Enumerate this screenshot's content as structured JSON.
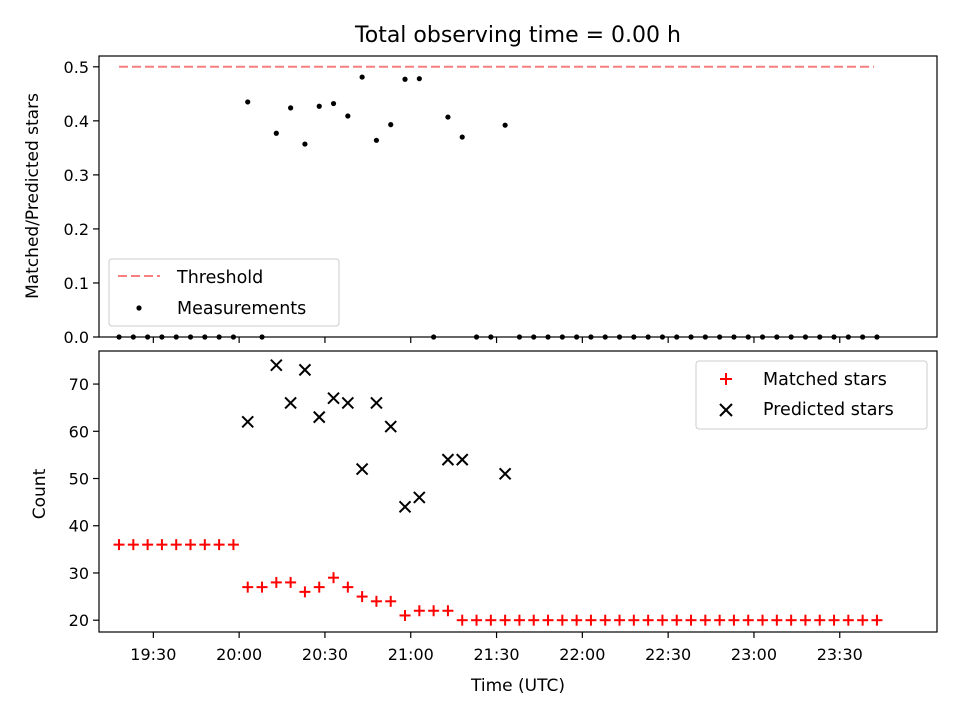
{
  "figure": {
    "title": "Total observing time = 0.00 h",
    "xlabel": "Time (UTC)",
    "xticks": [
      "19:30",
      "20:00",
      "20:30",
      "21:00",
      "21:30",
      "22:00",
      "22:30",
      "23:00",
      "23:30"
    ]
  },
  "chart_data": [
    {
      "type": "scatter",
      "ylabel": "Matched/Predicted stars",
      "yticks": [
        "0.0",
        "0.1",
        "0.2",
        "0.3",
        "0.4",
        "0.5"
      ],
      "ylim": [
        0,
        0.52
      ],
      "xlim": [
        "19:11",
        "24:04"
      ],
      "legend": {
        "placement": "lower-left",
        "entries": [
          "Threshold",
          "Measurements"
        ]
      },
      "threshold": {
        "name": "Threshold",
        "value": 0.5,
        "color": "#f77f7f",
        "style": "dashed",
        "x_range": [
          "19:18",
          "23:42"
        ]
      },
      "series": [
        {
          "name": "Measurements",
          "color": "#000000",
          "marker": "dot",
          "x": [
            "19:18",
            "19:23",
            "19:28",
            "19:33",
            "19:38",
            "19:43",
            "19:48",
            "19:53",
            "19:58",
            "20:03",
            "20:08",
            "20:13",
            "20:18",
            "20:23",
            "20:28",
            "20:33",
            "20:38",
            "20:43",
            "20:48",
            "20:53",
            "20:58",
            "21:03",
            "21:08",
            "21:13",
            "21:18",
            "21:23",
            "21:28",
            "21:33",
            "21:38",
            "21:43",
            "21:48",
            "21:53",
            "21:58",
            "22:03",
            "22:08",
            "22:13",
            "22:18",
            "22:23",
            "22:28",
            "22:33",
            "22:38",
            "22:43",
            "22:48",
            "22:53",
            "22:58",
            "23:03",
            "23:08",
            "23:13",
            "23:18",
            "23:23",
            "23:28",
            "23:33",
            "23:38",
            "23:43"
          ],
          "y": [
            0,
            0,
            0,
            0,
            0,
            0,
            0,
            0,
            0,
            0.435,
            0,
            0.377,
            0.424,
            0.357,
            0.427,
            0.432,
            0.409,
            0.481,
            0.364,
            0.393,
            0.477,
            0.478,
            0,
            0.407,
            0.37,
            0,
            0,
            0.392,
            0,
            0,
            0,
            0,
            0,
            0,
            0,
            0,
            0,
            0,
            0,
            0,
            0,
            0,
            0,
            0,
            0,
            0,
            0,
            0,
            0,
            0,
            0,
            0,
            0,
            0
          ]
        }
      ]
    },
    {
      "type": "scatter",
      "ylabel": "Count",
      "yticks": [
        "20",
        "30",
        "40",
        "50",
        "60",
        "70"
      ],
      "ylim": [
        17.5,
        77
      ],
      "xlim": [
        "19:11",
        "24:04"
      ],
      "legend": {
        "placement": "top-right",
        "entries": [
          "Matched stars",
          "Predicted stars"
        ]
      },
      "series": [
        {
          "name": "Matched stars",
          "color": "#ff0000",
          "marker": "plus",
          "x": [
            "19:18",
            "19:23",
            "19:28",
            "19:33",
            "19:38",
            "19:43",
            "19:48",
            "19:53",
            "19:58",
            "20:03",
            "20:08",
            "20:13",
            "20:18",
            "20:23",
            "20:28",
            "20:33",
            "20:38",
            "20:43",
            "20:48",
            "20:53",
            "20:58",
            "21:03",
            "21:08",
            "21:13",
            "21:18",
            "21:23",
            "21:28",
            "21:33",
            "21:38",
            "21:43",
            "21:48",
            "21:53",
            "21:58",
            "22:03",
            "22:08",
            "22:13",
            "22:18",
            "22:23",
            "22:28",
            "22:33",
            "22:38",
            "22:43",
            "22:48",
            "22:53",
            "22:58",
            "23:03",
            "23:08",
            "23:13",
            "23:18",
            "23:23",
            "23:28",
            "23:33",
            "23:38",
            "23:43"
          ],
          "y": [
            36,
            36,
            36,
            36,
            36,
            36,
            36,
            36,
            36,
            27,
            27,
            28,
            28,
            26,
            27,
            29,
            27,
            25,
            24,
            24,
            21,
            22,
            22,
            22,
            20,
            20,
            20,
            20,
            20,
            20,
            20,
            20,
            20,
            20,
            20,
            20,
            20,
            20,
            20,
            20,
            20,
            20,
            20,
            20,
            20,
            20,
            20,
            20,
            20,
            20,
            20,
            20,
            20,
            20
          ]
        },
        {
          "name": "Predicted stars",
          "color": "#000000",
          "marker": "x",
          "x": [
            "20:03",
            "20:13",
            "20:18",
            "20:23",
            "20:28",
            "20:33",
            "20:38",
            "20:43",
            "20:48",
            "20:53",
            "20:58",
            "21:03",
            "21:13",
            "21:18",
            "21:33"
          ],
          "y": [
            62,
            74,
            66,
            73,
            63,
            67,
            66,
            52,
            66,
            61,
            44,
            46,
            54,
            54,
            51
          ]
        }
      ]
    }
  ]
}
